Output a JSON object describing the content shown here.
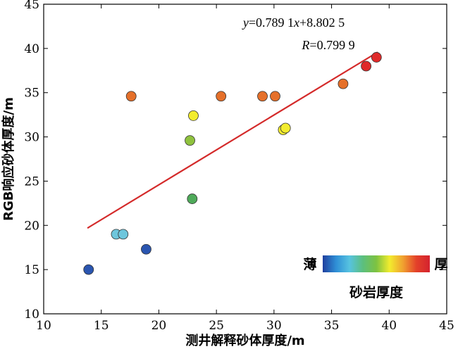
{
  "chart_data": {
    "type": "scatter",
    "xlabel": "测井解释砂体厚度/m",
    "ylabel": "RGB响应砂体厚度/m",
    "xlim": [
      10,
      45
    ],
    "ylim": [
      10,
      45
    ],
    "xticks": [
      "10",
      "15",
      "20",
      "25",
      "30",
      "35",
      "40",
      "45"
    ],
    "yticks": [
      "10",
      "15",
      "20",
      "25",
      "30",
      "35",
      "40",
      "45"
    ],
    "grid": false,
    "points": [
      {
        "x": 13.9,
        "y": 15.0,
        "color": "#2a55b0"
      },
      {
        "x": 16.3,
        "y": 19.0,
        "color": "#6ec6dc"
      },
      {
        "x": 16.9,
        "y": 19.0,
        "color": "#6ec6dc"
      },
      {
        "x": 18.9,
        "y": 17.3,
        "color": "#2a55b0"
      },
      {
        "x": 17.6,
        "y": 34.6,
        "color": "#e5702a"
      },
      {
        "x": 22.7,
        "y": 29.6,
        "color": "#8fc23e"
      },
      {
        "x": 22.9,
        "y": 23.0,
        "color": "#4faa5a"
      },
      {
        "x": 23.0,
        "y": 32.4,
        "color": "#f2ec2e"
      },
      {
        "x": 25.4,
        "y": 34.6,
        "color": "#e5702a"
      },
      {
        "x": 29.0,
        "y": 34.6,
        "color": "#e5702a"
      },
      {
        "x": 30.1,
        "y": 34.6,
        "color": "#e5702a"
      },
      {
        "x": 30.8,
        "y": 30.8,
        "color": "#f2ec2e"
      },
      {
        "x": 31.0,
        "y": 31.0,
        "color": "#f2ec2e"
      },
      {
        "x": 36.0,
        "y": 36.0,
        "color": "#e5702a"
      },
      {
        "x": 38.0,
        "y": 38.0,
        "color": "#e02a2a"
      },
      {
        "x": 38.9,
        "y": 39.0,
        "color": "#e02a2a"
      }
    ],
    "fit_line": {
      "slope": 0.7891,
      "intercept": 8.8025,
      "x_range": [
        13.8,
        39.0
      ],
      "color": "#d42a2a"
    },
    "equation_label": {
      "y": "y",
      "eq": "=0.789 1",
      "x": "x",
      "rest": "+8.802 5"
    },
    "r_label": {
      "r": "R",
      "rest": "=0.799 9"
    },
    "colorbar": {
      "left_label": "薄",
      "right_label": "厚",
      "title": "砂岩厚度",
      "colors": [
        "#1f3f9e",
        "#2f8fd6",
        "#57c3e0",
        "#5cbf7e",
        "#7dc241",
        "#f2ec2e",
        "#f0a030",
        "#e3412a",
        "#d4222e"
      ]
    }
  }
}
